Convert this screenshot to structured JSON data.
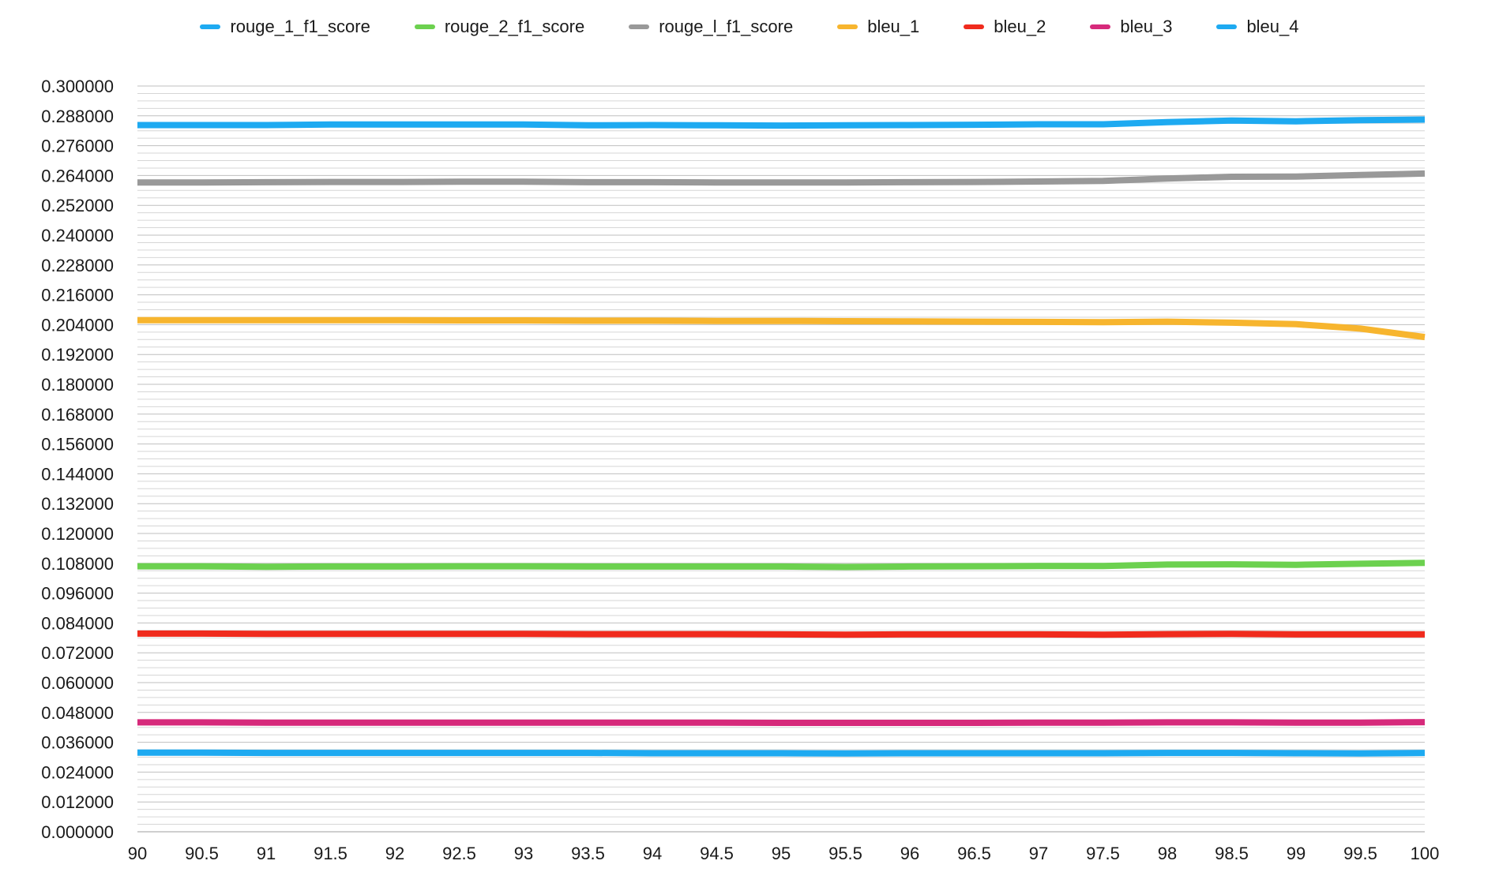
{
  "chart_data": {
    "type": "line",
    "title": "",
    "xlabel": "",
    "ylabel": "",
    "xlim": [
      90,
      100
    ],
    "ylim": [
      0,
      0.3
    ],
    "grid": true,
    "legend_position": "top",
    "x_ticks": [
      "90",
      "90.5",
      "91",
      "91.5",
      "92",
      "92.5",
      "93",
      "93.5",
      "94",
      "94.5",
      "95",
      "95.5",
      "96",
      "96.5",
      "97",
      "97.5",
      "98",
      "98.5",
      "99",
      "99.5",
      "100"
    ],
    "y_ticks": [
      "0.000000",
      "0.012000",
      "0.024000",
      "0.036000",
      "0.048000",
      "0.060000",
      "0.072000",
      "0.084000",
      "0.096000",
      "0.108000",
      "0.120000",
      "0.132000",
      "0.144000",
      "0.156000",
      "0.168000",
      "0.180000",
      "0.192000",
      "0.204000",
      "0.216000",
      "0.228000",
      "0.240000",
      "0.252000",
      "0.264000",
      "0.276000",
      "0.288000",
      "0.300000"
    ],
    "x": [
      90,
      90.5,
      91,
      91.5,
      92,
      92.5,
      93,
      93.5,
      94,
      94.5,
      95,
      95.5,
      96,
      96.5,
      97,
      97.5,
      98,
      98.5,
      99,
      99.5,
      100
    ],
    "series": [
      {
        "name": "rouge_1_f1_score",
        "color": "#1EAAF1",
        "values": [
          0.2843,
          0.2843,
          0.2843,
          0.2845,
          0.2845,
          0.2845,
          0.2845,
          0.2842,
          0.2843,
          0.2842,
          0.2841,
          0.2842,
          0.2843,
          0.2844,
          0.2846,
          0.2846,
          0.2855,
          0.2861,
          0.2858,
          0.2863,
          0.2865
        ]
      },
      {
        "name": "rouge_2_f1_score",
        "color": "#6CD14F",
        "values": [
          0.1068,
          0.1068,
          0.1066,
          0.1067,
          0.1067,
          0.1068,
          0.1068,
          0.1067,
          0.1067,
          0.1067,
          0.1067,
          0.1065,
          0.1067,
          0.1068,
          0.1069,
          0.1069,
          0.1075,
          0.1076,
          0.1074,
          0.1078,
          0.1082
        ]
      },
      {
        "name": "rouge_l_f1_score",
        "color": "#999999",
        "values": [
          0.2612,
          0.2612,
          0.2613,
          0.2614,
          0.2614,
          0.2615,
          0.2615,
          0.2613,
          0.2613,
          0.2612,
          0.2612,
          0.2612,
          0.2613,
          0.2614,
          0.2616,
          0.2618,
          0.2628,
          0.2635,
          0.2636,
          0.2642,
          0.2648
        ]
      },
      {
        "name": "bleu_1",
        "color": "#F7B52E",
        "values": [
          0.2058,
          0.2058,
          0.2058,
          0.2058,
          0.2058,
          0.2057,
          0.2057,
          0.2056,
          0.2056,
          0.2055,
          0.2055,
          0.2054,
          0.2053,
          0.2052,
          0.2051,
          0.205,
          0.2052,
          0.2048,
          0.2042,
          0.2024,
          0.199
        ]
      },
      {
        "name": "bleu_2",
        "color": "#F02B1D",
        "values": [
          0.0797,
          0.0797,
          0.0796,
          0.0796,
          0.0796,
          0.0796,
          0.0796,
          0.0795,
          0.0795,
          0.0795,
          0.0794,
          0.0793,
          0.0794,
          0.0794,
          0.0794,
          0.0793,
          0.0795,
          0.0796,
          0.0794,
          0.0794,
          0.0794
        ]
      },
      {
        "name": "bleu_3",
        "color": "#D62A7B",
        "values": [
          0.044,
          0.044,
          0.0439,
          0.0439,
          0.0439,
          0.0439,
          0.0439,
          0.0439,
          0.0439,
          0.0439,
          0.0438,
          0.0438,
          0.0438,
          0.0438,
          0.0439,
          0.0439,
          0.044,
          0.044,
          0.0439,
          0.0439,
          0.0441
        ]
      },
      {
        "name": "bleu_4",
        "color": "#1EAAF1",
        "values": [
          0.0318,
          0.0318,
          0.0317,
          0.0317,
          0.0317,
          0.0317,
          0.0317,
          0.0317,
          0.0316,
          0.0316,
          0.0316,
          0.0315,
          0.0316,
          0.0316,
          0.0316,
          0.0316,
          0.0317,
          0.0317,
          0.0316,
          0.0315,
          0.0317
        ]
      }
    ]
  }
}
